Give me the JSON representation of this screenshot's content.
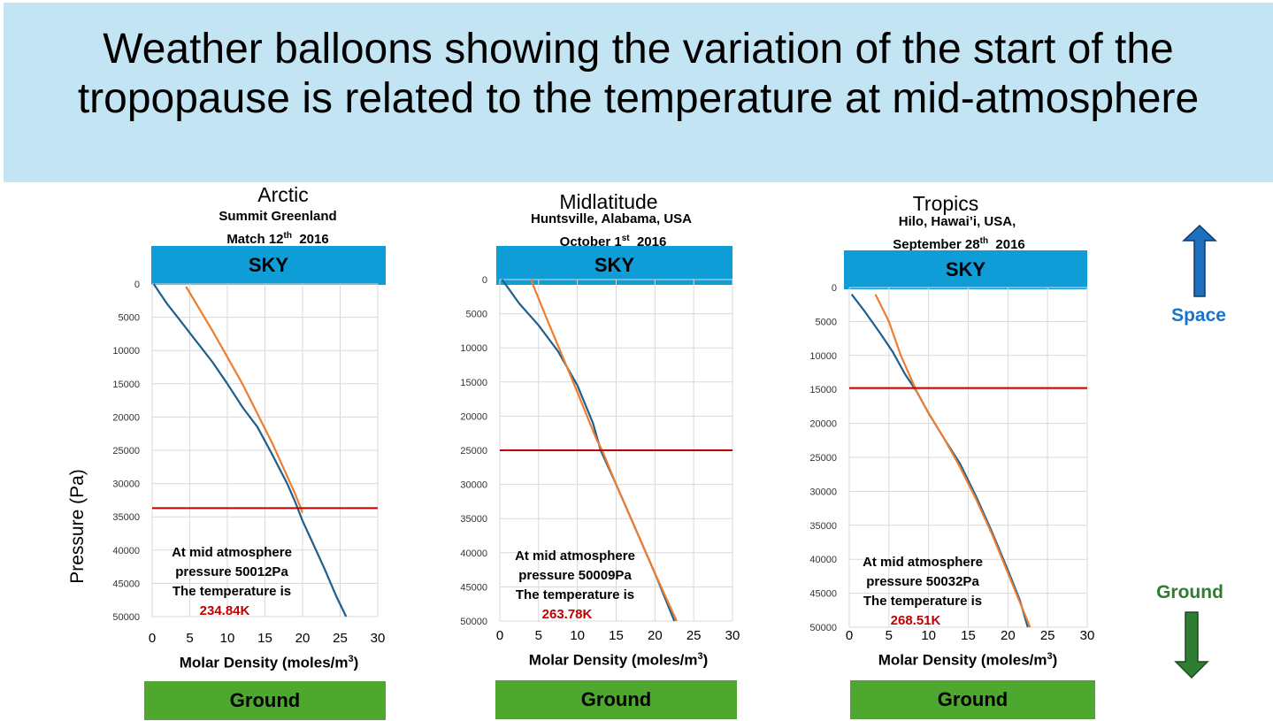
{
  "title": "Weather balloons showing the variation of the start of the tropopause is related to the temperature at mid-atmosphere",
  "global_ylabel": "Pressure (Pa)",
  "sky_label": "SKY",
  "ground_bar_label": "Ground",
  "side": {
    "space": "Space",
    "ground": "Ground",
    "space_color": "#1a73c8",
    "ground_color": "#2e7d32"
  },
  "colors": {
    "banner": "#c2e4f3",
    "sky": "#0e9dd6",
    "ground": "#4ea72e",
    "blue_line": "#1f5f8b",
    "orange_line": "#ed7d31",
    "tropopause_line": "#c00000",
    "grid": "#d9d9d9"
  },
  "note_line1": "At mid atmosphere",
  "note_temp_label": "The temperature is",
  "xaxis_title_text": "Molar Density (moles/m",
  "xaxis_title_sup": "3",
  "xaxis_title_close": ")",
  "chart_data": [
    {
      "type": "line",
      "region": "Arctic",
      "location_line1": "Summit Greenland",
      "date_main": "Match 12",
      "date_sup": "th",
      "date_year": "2016",
      "xlabel": "Molar Density (moles/m3)",
      "ylabel": "Pressure (Pa)",
      "xlim": [
        0,
        30
      ],
      "ylim": [
        0,
        50000
      ],
      "y_inverted": true,
      "x_ticks": [
        "0",
        "5",
        "10",
        "15",
        "20",
        "25",
        "30"
      ],
      "y_ticks": [
        "0",
        "5000",
        "10000",
        "15000",
        "20000",
        "25000",
        "30000",
        "35000",
        "40000",
        "45000",
        "50000"
      ],
      "grid": true,
      "series": [
        {
          "color": "#1f5f8b",
          "points": [
            [
              0.2,
              0
            ],
            [
              2,
              3000
            ],
            [
              3.8,
              5600
            ],
            [
              6,
              8800
            ],
            [
              8,
              11700
            ],
            [
              10,
              15000
            ],
            [
              12,
              18500
            ],
            [
              14,
              21500
            ],
            [
              16,
              25700
            ],
            [
              18,
              30100
            ],
            [
              19,
              32700
            ],
            [
              20,
              35600
            ],
            [
              21.5,
              39300
            ],
            [
              23,
              43000
            ],
            [
              24.5,
              47000
            ],
            [
              25.8,
              50000
            ]
          ]
        },
        {
          "color": "#ed7d31",
          "points": [
            [
              4.5,
              400
            ],
            [
              8,
              7000
            ],
            [
              12,
              15000
            ],
            [
              16,
              24000
            ],
            [
              19,
              31500
            ],
            [
              20,
              34400
            ]
          ]
        }
      ],
      "tropopause_y": 33700,
      "mid_pressure": "pressure 50012Pa",
      "temperature": "234.84K"
    },
    {
      "type": "line",
      "region": "Midlatitude",
      "location_line1": "Huntsville, Alabama, USA",
      "date_main": "October 1",
      "date_sup": "st",
      "date_year": "2016",
      "xlabel": "Molar Density (moles/m3)",
      "ylabel": "Pressure (Pa)",
      "xlim": [
        0,
        30
      ],
      "ylim": [
        0,
        50000
      ],
      "y_inverted": true,
      "x_ticks": [
        "0",
        "5",
        "10",
        "15",
        "20",
        "25",
        "30"
      ],
      "y_ticks": [
        "0",
        "5000",
        "10000",
        "15000",
        "20000",
        "25000",
        "30000",
        "35000",
        "40000",
        "45000",
        "50000"
      ],
      "grid": true,
      "series": [
        {
          "color": "#1f5f8b",
          "points": [
            [
              0.3,
              0
            ],
            [
              2.5,
              3500
            ],
            [
              5,
              6700
            ],
            [
              7.5,
              10500
            ],
            [
              10,
              15500
            ],
            [
              12,
              21000
            ],
            [
              13,
              25000
            ],
            [
              15,
              30000
            ],
            [
              17.5,
              36500
            ],
            [
              20,
              43000
            ],
            [
              22.5,
              50000
            ]
          ]
        },
        {
          "color": "#ed7d31",
          "points": [
            [
              4,
              0
            ],
            [
              6,
              5600
            ],
            [
              8,
              11000
            ],
            [
              10,
              16500
            ],
            [
              12.5,
              23500
            ],
            [
              13.2,
              25000
            ],
            [
              15,
              30000
            ],
            [
              17.5,
              36500
            ],
            [
              20,
              43000
            ],
            [
              22.8,
              50000
            ]
          ]
        }
      ],
      "tropopause_y": 25000,
      "mid_pressure": "pressure 50009Pa",
      "temperature": "263.78K"
    },
    {
      "type": "line",
      "region": "Tropics",
      "location_line1": "Hilo, Hawai’i, USA,",
      "date_main": "September 28",
      "date_sup": "th",
      "date_year": "2016",
      "xlabel": "Molar Density (moles/m3)",
      "ylabel": "Pressure (Pa)",
      "xlim": [
        0,
        30
      ],
      "ylim": [
        0,
        50000
      ],
      "y_inverted": true,
      "x_ticks": [
        "0",
        "5",
        "10",
        "15",
        "20",
        "25",
        "30"
      ],
      "y_ticks": [
        "0",
        "5000",
        "10000",
        "15000",
        "20000",
        "25000",
        "30000",
        "35000",
        "40000",
        "45000",
        "50000"
      ],
      "grid": true,
      "series": [
        {
          "color": "#1f5f8b",
          "points": [
            [
              0.3,
              1000
            ],
            [
              2,
              3600
            ],
            [
              4,
              6900
            ],
            [
              5.5,
              9500
            ],
            [
              7,
              12700
            ],
            [
              8.5,
              15300
            ],
            [
              10,
              18500
            ],
            [
              12,
              22300
            ],
            [
              14,
              26000
            ],
            [
              16,
              30800
            ],
            [
              18,
              36000
            ],
            [
              20,
              41600
            ],
            [
              21.5,
              46000
            ],
            [
              22.5,
              50000
            ]
          ]
        },
        {
          "color": "#ed7d31",
          "points": [
            [
              3.3,
              1000
            ],
            [
              5,
              5000
            ],
            [
              6.5,
              10000
            ],
            [
              8.5,
              15300
            ],
            [
              10,
              18500
            ],
            [
              12,
              22300
            ],
            [
              14,
              26500
            ],
            [
              16,
              31200
            ],
            [
              18,
              36300
            ],
            [
              20,
              42000
            ],
            [
              22.8,
              50000
            ]
          ]
        }
      ],
      "tropopause_y": 14800,
      "mid_pressure": "pressure 50032Pa",
      "temperature": "268.51K"
    }
  ]
}
